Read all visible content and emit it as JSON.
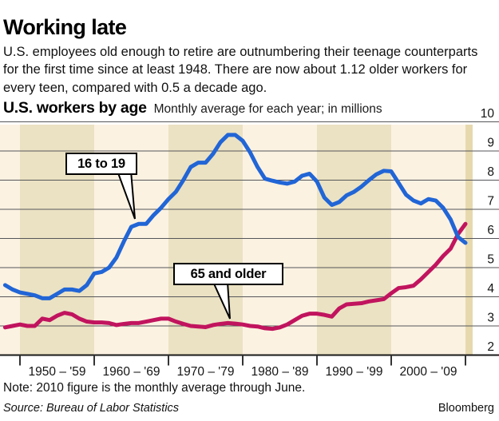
{
  "header": {
    "title": "Working late",
    "description": "U.S. employees old enough to retire are outnumbering their teenage counterparts for the first time since at least 1948. There are now about 1.12 older workers for every teen, compared with 0.5 a decade ago."
  },
  "chart": {
    "title": "U.S. workers by age",
    "subtitle": "Monthly average for each year; in millions"
  },
  "chart_data": {
    "type": "line",
    "title": "U.S. workers by age",
    "subtitle": "Monthly average for each year; in millions",
    "ylim": [
      2,
      10
    ],
    "yticks": [
      2,
      3,
      4,
      5,
      6,
      7,
      8,
      9,
      10
    ],
    "grid": true,
    "x_axis": {
      "boundaries": [
        1950,
        1960,
        1970,
        1980,
        1990,
        2000,
        2010
      ],
      "labels": [
        "1950 – '59",
        "1960 – '69",
        "1970 – '79",
        "1980 – '89",
        "1990 – '99",
        "2000 – '09"
      ]
    },
    "years": [
      1948,
      1949,
      1950,
      1951,
      1952,
      1953,
      1954,
      1955,
      1956,
      1957,
      1958,
      1959,
      1960,
      1961,
      1962,
      1963,
      1964,
      1965,
      1966,
      1967,
      1968,
      1969,
      1970,
      1971,
      1972,
      1973,
      1974,
      1975,
      1976,
      1977,
      1978,
      1979,
      1980,
      1981,
      1982,
      1983,
      1984,
      1985,
      1986,
      1987,
      1988,
      1989,
      1990,
      1991,
      1992,
      1993,
      1994,
      1995,
      1996,
      1997,
      1998,
      1999,
      2000,
      2001,
      2002,
      2003,
      2004,
      2005,
      2006,
      2007,
      2008,
      2009,
      2010
    ],
    "series": [
      {
        "name": "16 to 19",
        "color": "#2165d6",
        "values": [
          4.4,
          4.25,
          4.15,
          4.1,
          4.05,
          3.95,
          3.95,
          4.1,
          4.25,
          4.25,
          4.2,
          4.4,
          4.8,
          4.85,
          5.0,
          5.35,
          5.9,
          6.4,
          6.5,
          6.5,
          6.8,
          7.05,
          7.35,
          7.6,
          8.0,
          8.45,
          8.6,
          8.6,
          8.9,
          9.3,
          9.55,
          9.55,
          9.35,
          8.95,
          8.45,
          8.05,
          7.98,
          7.92,
          7.88,
          7.95,
          8.15,
          8.22,
          7.95,
          7.4,
          7.15,
          7.25,
          7.48,
          7.6,
          7.78,
          8.0,
          8.2,
          8.32,
          8.3,
          7.9,
          7.5,
          7.3,
          7.2,
          7.35,
          7.3,
          7.05,
          6.65,
          6.05,
          5.85
        ]
      },
      {
        "name": "65 and older",
        "color": "#c1145e",
        "values": [
          2.95,
          3.0,
          3.05,
          3.0,
          3.0,
          3.25,
          3.2,
          3.35,
          3.45,
          3.4,
          3.25,
          3.15,
          3.12,
          3.12,
          3.1,
          3.03,
          3.07,
          3.1,
          3.1,
          3.15,
          3.2,
          3.25,
          3.25,
          3.15,
          3.07,
          3.0,
          2.98,
          2.96,
          3.03,
          3.07,
          3.1,
          3.08,
          3.05,
          3.0,
          2.98,
          2.92,
          2.9,
          2.95,
          3.05,
          3.2,
          3.35,
          3.42,
          3.42,
          3.38,
          3.32,
          3.6,
          3.74,
          3.76,
          3.78,
          3.84,
          3.88,
          3.92,
          4.12,
          4.3,
          4.33,
          4.38,
          4.6,
          4.85,
          5.1,
          5.4,
          5.65,
          6.15,
          6.5
        ]
      }
    ],
    "annotations": [
      "16 to 19",
      "65 and older"
    ],
    "colors": {
      "plot_bg": "#fcf2e2",
      "decade_band": "#ebe2c3",
      "final_band": "#e7d9ae",
      "gridline": "#55565a",
      "axis": "#1a1a1a",
      "tick": "#333333"
    },
    "legend_position": "callouts-on-plot"
  },
  "footer": {
    "note": "Note: 2010 figure is the monthly average through June.",
    "source": "Source: Bureau of Labor Statistics",
    "credit": "Bloomberg"
  }
}
